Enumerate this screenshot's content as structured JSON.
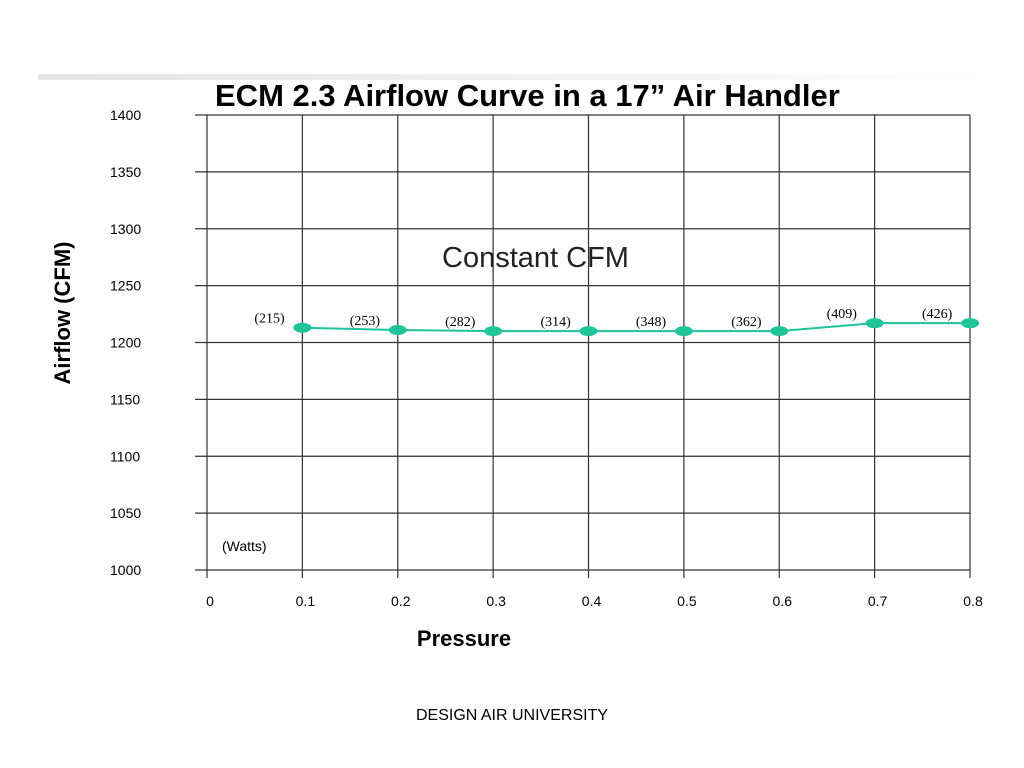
{
  "chart_data": {
    "type": "line",
    "title": "ECM 2.3 Airflow Curve in a 17” Air Handler",
    "xlabel": "Pressure",
    "ylabel": "Airflow (CFM)",
    "xlim": [
      0,
      0.8
    ],
    "ylim": [
      1000,
      1400
    ],
    "x_ticks": [
      "0",
      "0.1",
      "0.2",
      "0.3",
      "0.4",
      "0.5",
      "0.6",
      "0.7",
      "0.8"
    ],
    "y_ticks": [
      "1000",
      "1050",
      "1100",
      "1150",
      "1200",
      "1250",
      "1300",
      "1350",
      "1400"
    ],
    "grid": true,
    "series": [
      {
        "x": [
          0.1,
          0.2,
          0.3,
          0.4,
          0.5,
          0.6,
          0.7,
          0.8
        ],
        "values": [
          1213,
          1211,
          1210,
          1210,
          1210,
          1210,
          1217,
          1217
        ],
        "labels": [
          "(215)",
          "(253)",
          "(282)",
          "(314)",
          "(348)",
          "(362)",
          "(409)",
          "(426)"
        ],
        "color": "#1fc49a"
      }
    ],
    "annotations": [
      "Constant CFM",
      "(Watts)"
    ]
  },
  "footer": "DESIGN AIR UNIVERSITY"
}
